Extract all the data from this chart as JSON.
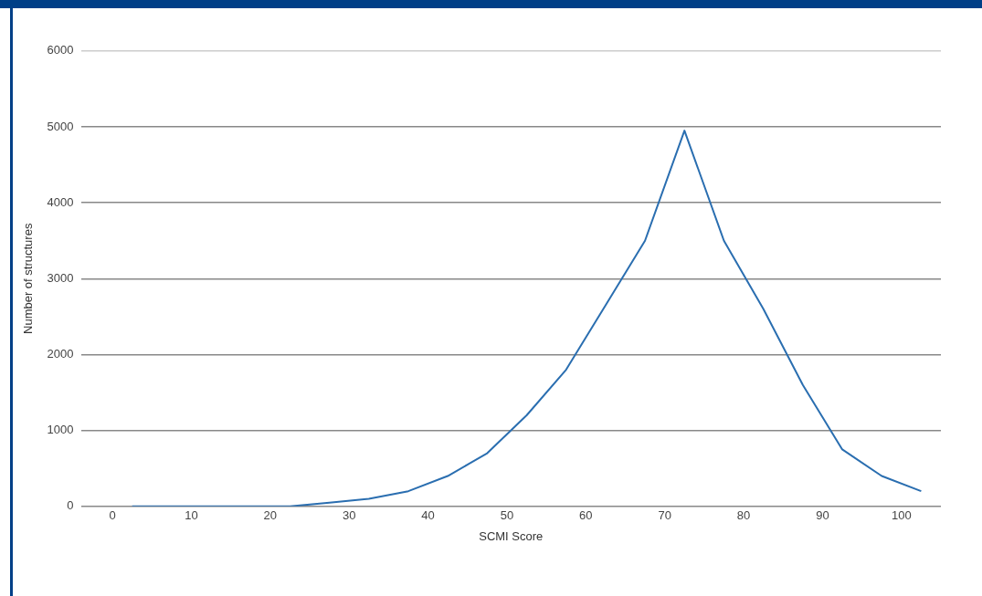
{
  "chart_data": {
    "type": "line",
    "xlabel": "SCMI Score",
    "ylabel": "Number of structures",
    "x": [
      2.5,
      7.5,
      12.5,
      17.5,
      22.5,
      27.5,
      32.5,
      37.5,
      42.5,
      47.5,
      52.5,
      57.5,
      62.5,
      67.5,
      72.5,
      77.5,
      82.5,
      87.5,
      92.5,
      97.5,
      102.5
    ],
    "series": [
      {
        "color": "#2a6eb0",
        "values": [
          0,
          0,
          0,
          0,
          0,
          50,
          100,
          200,
          400,
          700,
          1200,
          1800,
          2650,
          3500,
          4950,
          3500,
          2600,
          1600,
          750,
          400,
          200
        ]
      }
    ],
    "xlim": [
      -4,
      105
    ],
    "xticks": [
      0,
      10,
      20,
      30,
      40,
      50,
      60,
      70,
      80,
      90,
      100
    ],
    "ylim": [
      0,
      6000
    ],
    "yticks": [
      0,
      1000,
      2000,
      3000,
      4000,
      5000,
      6000
    ],
    "grid": "y",
    "legend": false,
    "marker": "none",
    "line_style": "solid"
  }
}
